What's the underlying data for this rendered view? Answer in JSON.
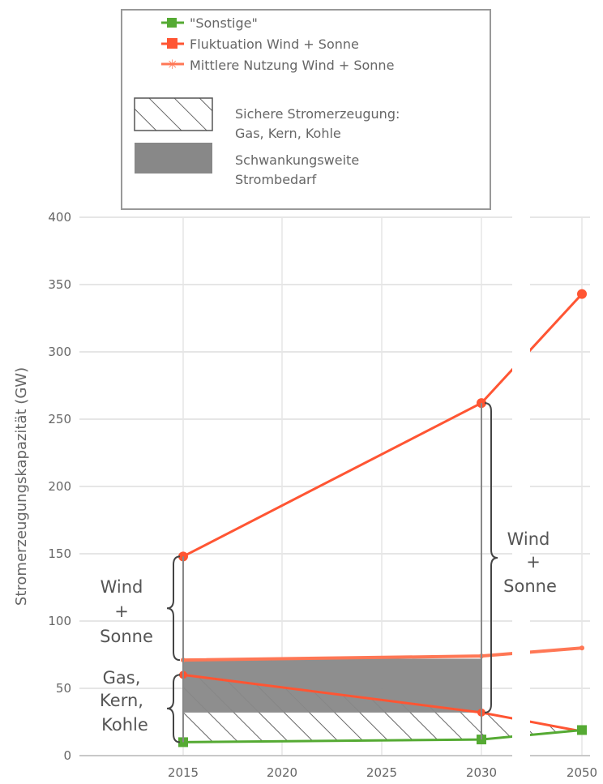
{
  "chart_data": {
    "type": "line",
    "xlabel": "",
    "ylabel": "Stromerzeugungskapazität (GW)",
    "ylim": [
      0,
      400
    ],
    "yticks": [
      0,
      50,
      100,
      150,
      200,
      250,
      300,
      350,
      400
    ],
    "xticks": [
      2015,
      2020,
      2025,
      2030,
      2050
    ],
    "axis_break": true,
    "grid": true,
    "legend_placement": "top",
    "series": [
      {
        "name": "\"Sonstige\"",
        "color": "#55aa33",
        "x": [
          2015,
          2030,
          2050
        ],
        "y": [
          10,
          12,
          19
        ]
      },
      {
        "name": "Fluktuation Wind + Sonne",
        "color": "#ff5533",
        "x": [
          2015,
          2030,
          2050
        ],
        "y": [
          148,
          262,
          343
        ]
      },
      {
        "name": "Mittlere Nutzung Wind + Sonne",
        "color": "#ff7755",
        "x": [
          2015,
          2030,
          2050
        ],
        "y": [
          71,
          74,
          80
        ]
      }
    ],
    "secure_generation": {
      "x": [
        2015,
        2030,
        2050
      ],
      "y": [
        60,
        32,
        18
      ],
      "color": "#ff5533"
    },
    "demand_band": {
      "x": [
        2015,
        2030
      ],
      "y_low": [
        32,
        32
      ],
      "y_high": [
        72,
        72
      ],
      "color": "#888888"
    },
    "legend_boxes": [
      {
        "kind": "hatch",
        "label_lines": [
          "Sichere Stromerzeugung:",
          "Gas, Kern, Kohle"
        ]
      },
      {
        "kind": "fill",
        "color": "#888888",
        "label_lines": [
          "Schwankungsweite",
          "Strombedarf"
        ]
      }
    ],
    "annotations": [
      {
        "lines": [
          "Wind",
          "+",
          "Sonne"
        ]
      },
      {
        "lines": [
          "Gas,",
          "Kern,",
          "Kohle"
        ]
      },
      {
        "lines": [
          "Wind",
          "+",
          "Sonne"
        ]
      }
    ]
  }
}
